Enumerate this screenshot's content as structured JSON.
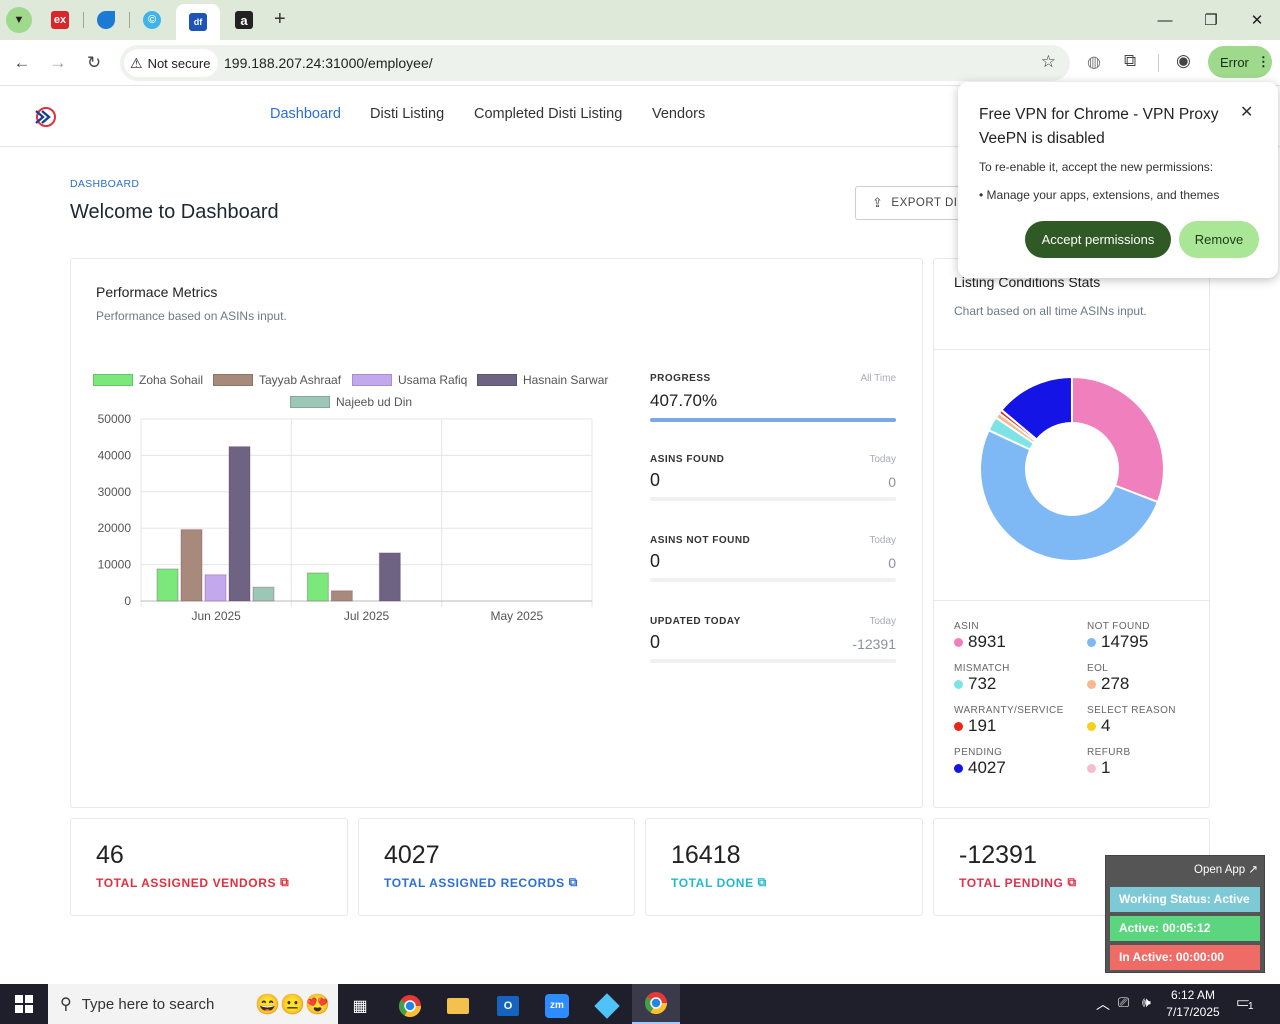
{
  "browser": {
    "url": "199.188.207.24:31000/employee/",
    "not_secure_label": "Not secure",
    "error_label": "Error",
    "tabs": [
      {
        "icon": "ex-favicon",
        "label": "ex"
      },
      {
        "icon": "blue-app-favicon",
        "label": ""
      },
      {
        "icon": "c-favicon",
        "label": "©"
      },
      {
        "icon": "df-favicon",
        "label": "df"
      },
      {
        "icon": "amazon-favicon",
        "label": "a"
      }
    ],
    "new_tab_symbol": "+"
  },
  "nav": {
    "links": [
      "Dashboard",
      "Disti Listing",
      "Completed Disti Listing",
      "Vendors"
    ]
  },
  "page": {
    "breadcrumb": "DASHBOARD",
    "title": "Welcome to Dashboard",
    "export_label": "EXPORT DIS"
  },
  "performance": {
    "title": "Performace Metrics",
    "subtitle": "Performance based on ASINs input.",
    "stats": [
      {
        "title": "PROGRESS",
        "right": "All Time",
        "value": "407.70%",
        "value_right": "",
        "fill": 1.0
      },
      {
        "title": "ASINS FOUND",
        "right": "Today",
        "value": "0",
        "value_right": "0",
        "fill": 0
      },
      {
        "title": "ASINS NOT FOUND",
        "right": "Today",
        "value": "0",
        "value_right": "0",
        "fill": 0
      },
      {
        "title": "UPDATED TODAY",
        "right": "Today",
        "value": "0",
        "value_right": "-12391",
        "fill": 0
      }
    ]
  },
  "chart_data": [
    {
      "type": "bar",
      "categories": [
        "Jun 2025",
        "Jul 2025",
        "May 2025"
      ],
      "ylim": [
        0,
        50000
      ],
      "yticks": [
        "0",
        "10000",
        "20000",
        "30000",
        "40000",
        "50000"
      ],
      "series": [
        {
          "name": "Zoha Sohail",
          "color": "#7be87b",
          "values": [
            8800,
            7700,
            0
          ]
        },
        {
          "name": "Tayyab Ashraaf",
          "color": "#a88a7c",
          "values": [
            19600,
            2800,
            0
          ]
        },
        {
          "name": "Usama Rafiq",
          "color": "#c4a8ee",
          "values": [
            7200,
            0,
            0
          ]
        },
        {
          "name": "Hasnain Sarwar",
          "color": "#6e6382",
          "values": [
            42400,
            13200,
            0
          ]
        },
        {
          "name": "Najeeb ud Din",
          "color": "#9cc7b6",
          "values": [
            3800,
            0,
            0
          ]
        }
      ]
    },
    {
      "type": "pie",
      "title": "Listing Conditions Stats",
      "subtitle": "Chart based on all time ASINs input.",
      "categories": [
        "ASIN",
        "NOT FOUND",
        "MISMATCH",
        "EOL",
        "WARRANTY/SERVICE",
        "SELECT REASON",
        "PENDING",
        "REFURB"
      ],
      "values": [
        8931,
        14795,
        732,
        278,
        191,
        4,
        4027,
        1
      ],
      "colors": [
        "#f07fbd",
        "#7fb9f5",
        "#7ee3e6",
        "#f7b98e",
        "#e8261e",
        "#f2d21a",
        "#1414e6",
        "#f7bdc9"
      ]
    }
  ],
  "condition_stats": [
    {
      "label": "ASIN",
      "value": "8931",
      "color": "#f07fbd"
    },
    {
      "label": "NOT FOUND",
      "value": "14795",
      "color": "#7fb9f5"
    },
    {
      "label": "MISMATCH",
      "value": "732",
      "color": "#7ee3e6"
    },
    {
      "label": "EOL",
      "value": "278",
      "color": "#f7b98e"
    },
    {
      "label": "WARRANTY/SERVICE",
      "value": "191",
      "color": "#e8261e"
    },
    {
      "label": "SELECT REASON",
      "value": "4",
      "color": "#f2d21a"
    },
    {
      "label": "PENDING",
      "value": "4027",
      "color": "#1414e6"
    },
    {
      "label": "REFURB",
      "value": "1",
      "color": "#f7bdc9"
    }
  ],
  "totals": [
    {
      "value": "46",
      "label": "TOTAL ASSIGNED VENDORS",
      "color": "#e0303d"
    },
    {
      "value": "4027",
      "label": "TOTAL ASSIGNED RECORDS",
      "color": "#2b6fd6"
    },
    {
      "value": "16418",
      "label": "TOTAL DONE",
      "color": "#22b8cf"
    },
    {
      "value": "-12391",
      "label": "TOTAL PENDING",
      "color": "#e0304a"
    }
  ],
  "popup": {
    "title": "Free VPN for Chrome - VPN Proxy VeePN is disabled",
    "body": "To re-enable it, accept the new permissions:",
    "bullet": "• Manage your apps, extensions, and themes",
    "accept_label": "Accept permissions",
    "remove_label": "Remove"
  },
  "widget": {
    "open_app": "Open App ↗",
    "status": "Working Status: Active",
    "active": "Active: 00:05:12",
    "inactive": "In Active: 00:00:00"
  },
  "taskbar": {
    "search_placeholder": "Type here to search",
    "time": "6:12 AM",
    "date": "7/17/2025",
    "notification_count": "1"
  }
}
